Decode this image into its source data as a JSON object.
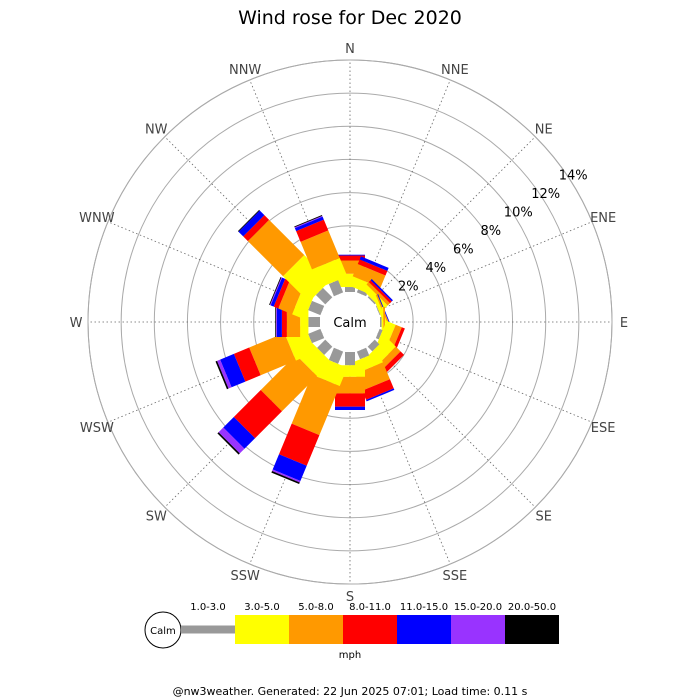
{
  "chart_data": {
    "type": "windrose",
    "title": "Wind rose for Dec 2020",
    "directions": [
      "N",
      "NNE",
      "NE",
      "ENE",
      "E",
      "ESE",
      "SE",
      "SSE",
      "S",
      "SSW",
      "SW",
      "WSW",
      "W",
      "WNW",
      "NW",
      "NNW"
    ],
    "radial_ticks": [
      "2%",
      "4%",
      "6%",
      "8%",
      "10%",
      "12%",
      "14%"
    ],
    "rmax": 14,
    "grid": true,
    "calm_label": "Calm",
    "unit": "mph",
    "speed_bins": [
      {
        "label": "1.0-3.0",
        "color": "#999999"
      },
      {
        "label": "3.0-5.0",
        "color": "#ffff00"
      },
      {
        "label": "5.0-8.0",
        "color": "#ff9900"
      },
      {
        "label": "8.0-11.0",
        "color": "#ff0000"
      },
      {
        "label": "11.0-15.0",
        "color": "#0000ff"
      },
      {
        "label": "15.0-20.0",
        "color": "#9933ff"
      },
      {
        "label": "20.0-50.0",
        "color": "#000000"
      }
    ],
    "frequencies": [
      [
        0.3,
        0.8,
        0.8,
        0.3,
        0.05,
        0.0,
        0.0
      ],
      [
        0.2,
        0.6,
        0.8,
        0.3,
        0.2,
        0.0,
        0.0
      ],
      [
        0.1,
        0.4,
        0.2,
        0.15,
        0.1,
        0.0,
        0.0
      ],
      [
        0.05,
        0.2,
        0.1,
        0.0,
        0.05,
        0.0,
        0.0
      ],
      [
        0.1,
        0.1,
        0.1,
        0.0,
        0.0,
        0.0,
        0.0
      ],
      [
        0.2,
        0.6,
        0.4,
        0.2,
        0.0,
        0.0,
        0.0
      ],
      [
        0.4,
        0.8,
        0.4,
        0.3,
        0.0,
        0.0,
        0.0
      ],
      [
        0.5,
        0.7,
        1.1,
        0.6,
        0.1,
        0.0,
        0.0
      ],
      [
        0.8,
        0.7,
        1.0,
        0.8,
        0.2,
        0.0,
        0.0
      ],
      [
        0.8,
        1.2,
        3.2,
        2.0,
        1.0,
        0.1,
        0.1
      ],
      [
        0.7,
        1.2,
        3.0,
        2.3,
        0.9,
        0.4,
        0.1
      ],
      [
        0.8,
        1.3,
        2.3,
        1.0,
        0.9,
        0.2,
        0.1
      ],
      [
        0.7,
        0.5,
        0.8,
        0.3,
        0.3,
        0.05,
        0.05
      ],
      [
        0.8,
        0.8,
        0.9,
        0.3,
        0.2,
        0.05,
        0.05
      ],
      [
        0.8,
        2.2,
        3.0,
        0.4,
        0.4,
        0.0,
        0.05
      ],
      [
        0.8,
        1.2,
        1.8,
        0.7,
        0.2,
        0.05,
        0.05
      ]
    ],
    "legend_placement": "bottom"
  },
  "footer": "@nw3weather. Generated: 22 Jun 2025 07:01; Load time: 0.11 s"
}
